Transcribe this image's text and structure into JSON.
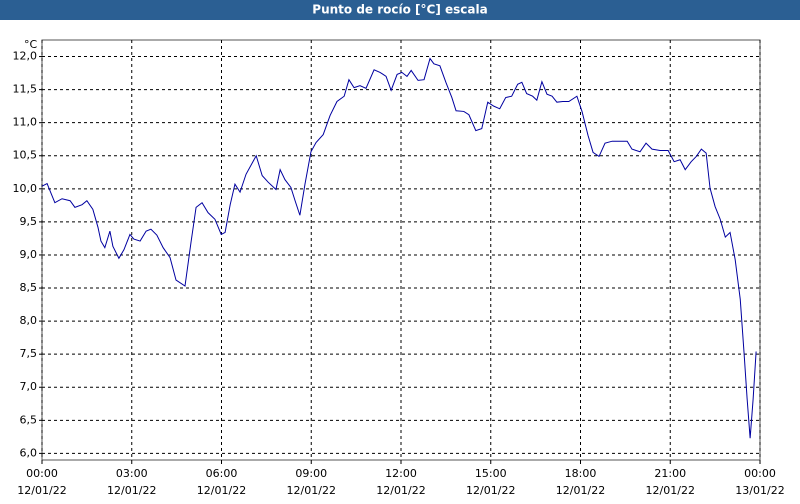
{
  "chart_data": {
    "type": "line",
    "title": "Punto de rocío [°C] escala",
    "y_unit": "°C",
    "color": "#0000a0",
    "grid": true,
    "xlim": [
      0,
      24
    ],
    "xticks": [
      {
        "value": 0,
        "label": "00:00"
      },
      {
        "value": 3,
        "label": "03:00"
      },
      {
        "value": 6,
        "label": "06:00"
      },
      {
        "value": 9,
        "label": "09:00"
      },
      {
        "value": 12,
        "label": "12:00"
      },
      {
        "value": 15,
        "label": "15:00"
      },
      {
        "value": 18,
        "label": "18:00"
      },
      {
        "value": 21,
        "label": "21:00"
      },
      {
        "value": 24,
        "label": "00:00"
      }
    ],
    "xtick_dates": [
      "12/01/22",
      "12/01/22",
      "12/01/22",
      "12/01/22",
      "12/01/22",
      "12/01/22",
      "12/01/22",
      "12/01/22",
      "13/01/22"
    ],
    "ylim": [
      5.9,
      12.25
    ],
    "yticks": [
      {
        "value": 6,
        "label": "6,0"
      },
      {
        "value": 6.5,
        "label": "6,5"
      },
      {
        "value": 7,
        "label": "7,0"
      },
      {
        "value": 7.5,
        "label": "7,5"
      },
      {
        "value": 8,
        "label": "8,0"
      },
      {
        "value": 8.5,
        "label": "8,5"
      },
      {
        "value": 9,
        "label": "9,0"
      },
      {
        "value": 9.5,
        "label": "9,5"
      },
      {
        "value": 10,
        "label": "10,0"
      },
      {
        "value": 10.5,
        "label": "10,5"
      },
      {
        "value": 11,
        "label": "11,0"
      },
      {
        "value": 11.5,
        "label": "11,5"
      },
      {
        "value": 12,
        "label": "12,0"
      }
    ],
    "x": [
      0,
      0.17,
      0.43,
      0.67,
      0.94,
      1.1,
      1.34,
      1.5,
      1.7,
      1.87,
      1.97,
      2.1,
      2.27,
      2.37,
      2.57,
      2.74,
      2.94,
      3.07,
      3.28,
      3.48,
      3.64,
      3.84,
      4.05,
      4.28,
      4.48,
      4.78,
      4.98,
      5.15,
      5.35,
      5.55,
      5.78,
      5.99,
      6.12,
      6.29,
      6.45,
      6.62,
      6.82,
      7.16,
      7.36,
      7.56,
      7.82,
      7.96,
      8.12,
      8.32,
      8.46,
      8.62,
      8.79,
      8.99,
      9.16,
      9.4,
      9.63,
      9.86,
      10.1,
      10.26,
      10.43,
      10.63,
      10.83,
      11.1,
      11.3,
      11.5,
      11.67,
      11.87,
      12.03,
      12.2,
      12.34,
      12.57,
      12.77,
      12.97,
      13.1,
      13.3,
      13.5,
      13.7,
      13.84,
      14.1,
      14.27,
      14.5,
      14.7,
      14.9,
      15.1,
      15.3,
      15.5,
      15.7,
      15.9,
      16.04,
      16.2,
      16.4,
      16.54,
      16.71,
      16.88,
      17.05,
      17.21,
      17.41,
      17.61,
      17.88,
      18.05,
      18.25,
      18.42,
      18.62,
      18.82,
      19.06,
      19.32,
      19.56,
      19.72,
      19.99,
      20.19,
      20.39,
      20.66,
      20.93,
      21.13,
      21.33,
      21.5,
      21.7,
      21.87,
      22.04,
      22.2,
      22.33,
      22.5,
      22.67,
      22.84,
      23.0,
      23.17,
      23.34,
      23.47,
      23.57,
      23.67,
      23.77,
      23.87
    ],
    "values": [
      10.04,
      10.08,
      9.79,
      9.85,
      9.82,
      9.72,
      9.76,
      9.82,
      9.69,
      9.42,
      9.21,
      9.11,
      9.36,
      9.13,
      8.95,
      9.08,
      9.31,
      9.24,
      9.21,
      9.36,
      9.39,
      9.3,
      9.11,
      8.96,
      8.62,
      8.53,
      9.19,
      9.72,
      9.79,
      9.64,
      9.54,
      9.31,
      9.34,
      9.76,
      10.07,
      9.95,
      10.22,
      10.5,
      10.2,
      10.1,
      9.99,
      10.29,
      10.14,
      10.02,
      9.82,
      9.6,
      10.07,
      10.56,
      10.7,
      10.82,
      11.11,
      11.32,
      11.4,
      11.65,
      11.53,
      11.56,
      11.52,
      11.8,
      11.76,
      11.7,
      11.49,
      11.73,
      11.76,
      11.7,
      11.79,
      11.64,
      11.65,
      11.97,
      11.89,
      11.86,
      11.61,
      11.38,
      11.18,
      11.17,
      11.12,
      10.88,
      10.91,
      11.31,
      11.25,
      11.21,
      11.38,
      11.4,
      11.58,
      11.61,
      11.44,
      11.4,
      11.34,
      11.62,
      11.43,
      11.4,
      11.31,
      11.32,
      11.32,
      11.4,
      11.17,
      10.81,
      10.55,
      10.49,
      10.69,
      10.72,
      10.72,
      10.72,
      10.6,
      10.56,
      10.69,
      10.6,
      10.58,
      10.58,
      10.41,
      10.44,
      10.29,
      10.41,
      10.49,
      10.6,
      10.54,
      10.01,
      9.73,
      9.54,
      9.27,
      9.34,
      8.93,
      8.33,
      7.5,
      6.82,
      6.23,
      6.82,
      7.54
    ]
  }
}
